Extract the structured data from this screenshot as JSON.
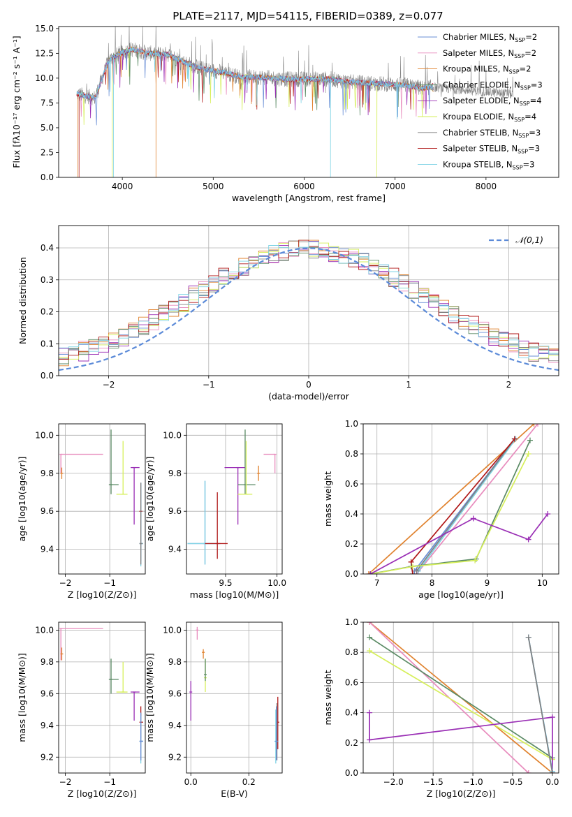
{
  "figure_title": "PLATE=2117, MJD=54115, FIBERID=0389, z=0.077",
  "colors": {
    "Chabrier MILES": "#6a8fd6",
    "Salpeter MILES": "#e88bbd",
    "Kroupa MILES": "#e0822e",
    "Chabrier ELODIE": "#5a8a64",
    "Salpeter ELODIE": "#9a2fb5",
    "Kroupa ELODIE": "#d6ef5a",
    "Chabrier STELIB": "#808080",
    "Salpeter STELIB": "#b01818",
    "Kroupa STELIB": "#7fd3e4"
  },
  "chart_data": [
    {
      "type": "line",
      "id": "spectrum",
      "title": "PLATE=2117, MJD=54115, FIBERID=0389, z=0.077",
      "xlabel": "wavelength [Angstrom, rest frame]",
      "ylabel": "Flux [fλ10⁻¹⁷ erg cm⁻² s⁻¹ A⁻¹]",
      "xlim": [
        3300,
        8800
      ],
      "ylim": [
        0,
        15.2
      ],
      "xticks": [
        4000,
        5000,
        6000,
        7000,
        8000
      ],
      "yticks": [
        0.0,
        2.5,
        5.0,
        7.5,
        10.0,
        12.5,
        15.0
      ],
      "grid": false,
      "legend_position": "upper-right",
      "legend": [
        "Chabrier MILES, N_SSP=2",
        "Salpeter MILES, N_SSP=2",
        "Kroupa MILES, N_SSP=2",
        "Chabrier ELODIE, N_SSP=3",
        "Salpeter ELODIE, N_SSP=4",
        "Kroupa ELODIE, N_SSP=4",
        "Chabrier STELIB, N_SSP=3",
        "Salpeter STELIB, N_SSP=3",
        "Kroupa STELIB, N_SSP=3"
      ],
      "legend_html": [
        "Chabrier MILES, N<tspan font-size='8' dy='3'>SSP</tspan><tspan dy='-3'>=2</tspan>",
        "Salpeter MILES, N<tspan font-size='8' dy='3'>SSP</tspan><tspan dy='-3'>=2</tspan>",
        "Kroupa MILES, N<tspan font-size='8' dy='3'>SSP</tspan><tspan dy='-3'>=2</tspan>",
        "Chabrier ELODIE, N<tspan font-size='8' dy='3'>SSP</tspan><tspan dy='-3'>=3</tspan>",
        "Salpeter ELODIE, N<tspan font-size='8' dy='3'>SSP</tspan><tspan dy='-3'>=4</tspan>",
        "Kroupa ELODIE, N<tspan font-size='8' dy='3'>SSP</tspan><tspan dy='-3'>=4</tspan>",
        "Chabrier STELIB, N<tspan font-size='8' dy='3'>SSP</tspan><tspan dy='-3'>=3</tspan>",
        "Salpeter STELIB, N<tspan font-size='8' dy='3'>SSP</tspan><tspan dy='-3'>=3</tspan>",
        "Kroupa STELIB, N<tspan font-size='8' dy='3'>SSP</tspan><tspan dy='-3'>=3</tspan>"
      ],
      "continuum": [
        [
          3500,
          8.4
        ],
        [
          3700,
          8.0
        ],
        [
          3850,
          11.8
        ],
        [
          3950,
          12.4
        ],
        [
          4100,
          12.9
        ],
        [
          4300,
          12.5
        ],
        [
          4500,
          12.4
        ],
        [
          4700,
          11.5
        ],
        [
          4900,
          10.9
        ],
        [
          5100,
          10.6
        ],
        [
          5300,
          10.1
        ],
        [
          5500,
          10.1
        ],
        [
          5800,
          9.9
        ],
        [
          6100,
          9.9
        ],
        [
          6300,
          9.9
        ],
        [
          6500,
          9.6
        ],
        [
          6700,
          9.5
        ],
        [
          6900,
          9.4
        ],
        [
          7100,
          9.3
        ],
        [
          7300,
          9.0
        ],
        [
          7400,
          9.1
        ]
      ],
      "observed_extends_to": 8300,
      "drops_to_zero": [
        {
          "series": "Kroupa MILES",
          "x": [
            3510,
            4365,
            7420
          ]
        },
        {
          "series": "Kroupa STELIB",
          "x": [
            3900,
            6290
          ]
        },
        {
          "series": "Kroupa ELODIE",
          "x": [
            3890,
            6800
          ]
        },
        {
          "series": "Salpeter STELIB",
          "x": [
            3520,
            7420
          ]
        }
      ]
    },
    {
      "type": "histogram",
      "id": "residuals",
      "xlabel": "(data-model)/error",
      "ylabel": "Normed distribution",
      "xlim": [
        -2.5,
        2.5
      ],
      "ylim": [
        0,
        0.47
      ],
      "xticks": [
        -2,
        -1,
        0,
        1,
        2
      ],
      "yticks": [
        0.0,
        0.1,
        0.2,
        0.3,
        0.4
      ],
      "grid": true,
      "legend_position": "upper-right",
      "reference": {
        "name": "𝒩(0,1)",
        "mean": 0,
        "sigma": 1
      },
      "bin_width": 0.1
    },
    {
      "type": "scatter",
      "id": "age_vs_Z",
      "xlabel": "Z [log10(Z/Z⊙)]",
      "ylabel": "age [log10(age/yr)]",
      "xlim": [
        -2.15,
        -0.2
      ],
      "ylim": [
        9.27,
        10.06
      ],
      "xticks": [
        -2,
        -1
      ],
      "yticks": [
        9.4,
        9.6,
        9.8,
        10.0
      ],
      "grid": true,
      "points": [
        {
          "series": "Salpeter MILES",
          "x": -2.1,
          "y": 9.9,
          "xerr": [
            0,
            0.95
          ],
          "yerr": [
            0.1,
            0
          ]
        },
        {
          "series": "Kroupa MILES",
          "x": -2.08,
          "y": 9.8,
          "xerr": [
            0,
            0
          ],
          "yerr": [
            0.03,
            0.03
          ]
        },
        {
          "series": "Chabrier ELODIE",
          "x": -0.97,
          "y": 9.74,
          "xerr": [
            0.05,
            0.17
          ],
          "yerr": [
            0.05,
            0.29
          ]
        },
        {
          "series": "Kroupa ELODIE",
          "x": -0.7,
          "y": 9.69,
          "xerr": [
            0.15,
            0.1
          ],
          "yerr": [
            0,
            0.28
          ]
        },
        {
          "series": "Salpeter ELODIE",
          "x": -0.45,
          "y": 9.83,
          "xerr": [
            0.08,
            0.12
          ],
          "yerr": [
            0.3,
            0
          ]
        },
        {
          "series": "Salpeter STELIB",
          "x": -0.3,
          "y": 9.6,
          "xerr": [
            0,
            0
          ],
          "yerr": [
            0.26,
            0.15
          ]
        },
        {
          "series": "Chabrier MILES",
          "x": -0.3,
          "y": 9.43,
          "xerr": [
            0.02,
            0.05
          ],
          "yerr": [
            0.11,
            0.32
          ]
        },
        {
          "series": "Kroupa STELIB",
          "x": -0.3,
          "y": 9.43,
          "xerr": [
            0.02,
            0.05
          ],
          "yerr": [
            0.12,
            0.32
          ]
        },
        {
          "series": "Chabrier STELIB",
          "x": -0.3,
          "y": 9.43,
          "xerr": [
            0.02,
            0.04
          ],
          "yerr": [
            0.11,
            0.32
          ]
        }
      ]
    },
    {
      "type": "scatter",
      "id": "age_vs_mass",
      "xlabel": "mass [log10(M/M⊙)]",
      "ylabel": "age [log10(age/yr)]",
      "xlim": [
        9.12,
        10.05
      ],
      "ylim": [
        9.27,
        10.06
      ],
      "xticks": [
        9.5,
        10.0
      ],
      "yticks": [
        9.4,
        9.6,
        9.8,
        10.0
      ],
      "grid": true,
      "points": [
        {
          "series": "Chabrier MILES",
          "x": 9.3,
          "y": 9.43,
          "xerr": [
            0.17,
            0.15
          ],
          "yerr": [
            0.11,
            0.33
          ]
        },
        {
          "series": "Kroupa STELIB",
          "x": 9.3,
          "y": 9.43,
          "xerr": [
            0.17,
            0.12
          ],
          "yerr": [
            0.11,
            0.33
          ]
        },
        {
          "series": "Salpeter STELIB",
          "x": 9.42,
          "y": 9.43,
          "xerr": [
            0.12,
            0.1
          ],
          "yerr": [
            0.08,
            0.27
          ]
        },
        {
          "series": "Salpeter ELODIE",
          "x": 9.62,
          "y": 9.83,
          "xerr": [
            0.13,
            0.07
          ],
          "yerr": [
            0.3,
            0
          ]
        },
        {
          "series": "Chabrier ELODIE",
          "x": 9.69,
          "y": 9.74,
          "xerr": [
            0.07,
            0.1
          ],
          "yerr": [
            0.05,
            0.29
          ]
        },
        {
          "series": "Kroupa ELODIE",
          "x": 9.7,
          "y": 9.69,
          "xerr": [
            0.08,
            0.06
          ],
          "yerr": [
            0,
            0.28
          ]
        },
        {
          "series": "Kroupa MILES",
          "x": 9.82,
          "y": 9.8,
          "xerr": [
            0,
            0
          ],
          "yerr": [
            0.04,
            0.04
          ]
        },
        {
          "series": "Salpeter MILES",
          "x": 9.98,
          "y": 9.9,
          "xerr": [
            0.11,
            0
          ],
          "yerr": [
            0.1,
            0
          ]
        }
      ]
    },
    {
      "type": "line",
      "id": "mass_weight_vs_age",
      "xlabel": "age [log10(age/yr)]",
      "ylabel": "mass weight",
      "xlim": [
        6.75,
        10.3
      ],
      "ylim": [
        0,
        1
      ],
      "xticks": [
        7,
        8,
        9,
        10
      ],
      "yticks": [
        0.0,
        0.2,
        0.4,
        0.6,
        0.8,
        1.0
      ],
      "grid": true,
      "series": [
        {
          "name": "Kroupa MILES",
          "points": [
            [
              6.85,
              0.0
            ],
            [
              9.85,
              1.0
            ]
          ]
        },
        {
          "name": "Salpeter MILES",
          "points": [
            [
              7.72,
              0.0
            ],
            [
              9.92,
              1.0
            ]
          ]
        },
        {
          "name": "Chabrier MILES",
          "points": [
            [
              7.68,
              0.02
            ],
            [
              9.5,
              0.9
            ]
          ]
        },
        {
          "name": "Kroupa STELIB",
          "points": [
            [
              7.75,
              0.02
            ],
            [
              9.52,
              0.9
            ]
          ]
        },
        {
          "name": "Chabrier STELIB",
          "points": [
            [
              7.72,
              0.02
            ],
            [
              9.5,
              0.9
            ]
          ]
        },
        {
          "name": "Salpeter STELIB",
          "points": [
            [
              7.65,
              0.0
            ],
            [
              7.62,
              0.08
            ],
            [
              9.5,
              0.9
            ]
          ]
        },
        {
          "name": "Chabrier ELODIE",
          "points": [
            [
              6.88,
              0.0
            ],
            [
              7.62,
              0.05
            ],
            [
              8.8,
              0.1
            ],
            [
              9.78,
              0.89
            ]
          ]
        },
        {
          "name": "Kroupa ELODIE",
          "points": [
            [
              6.9,
              0.0
            ],
            [
              7.65,
              0.05
            ],
            [
              8.78,
              0.09
            ],
            [
              9.75,
              0.8
            ]
          ]
        },
        {
          "name": "Salpeter ELODIE",
          "points": [
            [
              6.88,
              0.0
            ],
            [
              8.75,
              0.37
            ],
            [
              9.75,
              0.23
            ],
            [
              10.1,
              0.4
            ]
          ]
        }
      ]
    },
    {
      "type": "scatter",
      "id": "mass_vs_Z",
      "xlabel": "Z [log10(Z/Z⊙)]",
      "ylabel": "mass [log10(M/M⊙)]",
      "xlim": [
        -2.15,
        -0.2
      ],
      "ylim": [
        9.1,
        10.05
      ],
      "xticks": [
        -2,
        -1
      ],
      "yticks": [
        9.2,
        9.4,
        9.6,
        9.8,
        10.0
      ],
      "grid": true,
      "points": [
        {
          "series": "Salpeter MILES",
          "x": -2.1,
          "y": 10.01,
          "xerr": [
            0,
            0.95
          ],
          "yerr": [
            0.2,
            0
          ]
        },
        {
          "series": "Kroupa MILES",
          "x": -2.08,
          "y": 9.85,
          "xerr": [
            0,
            0
          ],
          "yerr": [
            0.04,
            0.04
          ]
        },
        {
          "series": "Chabrier ELODIE",
          "x": -0.97,
          "y": 9.69,
          "xerr": [
            0.05,
            0.17
          ],
          "yerr": [
            0.09,
            0.13
          ]
        },
        {
          "series": "Kroupa ELODIE",
          "x": -0.7,
          "y": 9.61,
          "xerr": [
            0.15,
            0.1
          ],
          "yerr": [
            0,
            0.19
          ]
        },
        {
          "series": "Salpeter ELODIE",
          "x": -0.45,
          "y": 9.61,
          "xerr": [
            0.08,
            0.12
          ],
          "yerr": [
            0.18,
            0
          ]
        },
        {
          "series": "Salpeter STELIB",
          "x": -0.3,
          "y": 9.42,
          "xerr": [
            0.02,
            0.05
          ],
          "yerr": [
            0.1,
            0.1
          ]
        },
        {
          "series": "Chabrier STELIB",
          "x": -0.3,
          "y": 9.3,
          "xerr": [
            0.02,
            0.05
          ],
          "yerr": [
            0.12,
            0.18
          ]
        },
        {
          "series": "Kroupa STELIB",
          "x": -0.3,
          "y": 9.3,
          "xerr": [
            0.02,
            0.05
          ],
          "yerr": [
            0.14,
            0.16
          ]
        },
        {
          "series": "Chabrier MILES",
          "x": -0.3,
          "y": 9.3,
          "xerr": [
            0.02,
            0.05
          ],
          "yerr": [
            0.12,
            0.18
          ]
        }
      ]
    },
    {
      "type": "scatter",
      "id": "mass_vs_ebv",
      "xlabel": "E(B-V)",
      "ylabel": "mass [log10(M/M⊙)]",
      "xlim": [
        -0.015,
        0.315
      ],
      "ylim": [
        9.1,
        10.05
      ],
      "xticks": [
        0.0,
        0.2
      ],
      "yticks": [
        9.2,
        9.4,
        9.6,
        9.8,
        10.0
      ],
      "grid": true,
      "points": [
        {
          "series": "Salpeter ELODIE",
          "x": 0.0,
          "y": 9.61,
          "xerr": [
            0,
            0
          ],
          "yerr": [
            0.18,
            0.07
          ]
        },
        {
          "series": "Salpeter MILES",
          "x": 0.022,
          "y": 10.0,
          "xerr": [
            0,
            0
          ],
          "yerr": [
            0.06,
            0.02
          ]
        },
        {
          "series": "Kroupa MILES",
          "x": 0.043,
          "y": 9.86,
          "xerr": [
            0,
            0
          ],
          "yerr": [
            0.04,
            0.02
          ]
        },
        {
          "series": "Kroupa ELODIE",
          "x": 0.05,
          "y": 9.7,
          "xerr": [
            0,
            0
          ],
          "yerr": [
            0.09,
            0.12
          ]
        },
        {
          "series": "Chabrier ELODIE",
          "x": 0.05,
          "y": 9.72,
          "xerr": [
            0,
            0
          ],
          "yerr": [
            0.04,
            0.1
          ]
        },
        {
          "series": "Salpeter STELIB",
          "x": 0.3,
          "y": 9.42,
          "xerr": [
            0,
            0
          ],
          "yerr": [
            0.17,
            0.16
          ]
        },
        {
          "series": "Chabrier STELIB",
          "x": 0.297,
          "y": 9.3,
          "xerr": [
            0,
            0
          ],
          "yerr": [
            0.12,
            0.24
          ]
        },
        {
          "series": "Kroupa STELIB",
          "x": 0.293,
          "y": 9.3,
          "xerr": [
            0,
            0
          ],
          "yerr": [
            0.14,
            0.2
          ]
        },
        {
          "series": "Chabrier MILES",
          "x": 0.295,
          "y": 9.3,
          "xerr": [
            0,
            0
          ],
          "yerr": [
            0.12,
            0.22
          ]
        }
      ]
    },
    {
      "type": "line",
      "id": "mass_weight_vs_Z",
      "xlabel": "Z [log10(Z/Z⊙)]",
      "ylabel": "mass weight",
      "xlim": [
        -2.38,
        0.08
      ],
      "ylim": [
        0,
        1
      ],
      "xticks": [
        -2.0,
        -1.5,
        -1.0,
        -0.5,
        0.0
      ],
      "yticks": [
        0.0,
        0.2,
        0.4,
        0.6,
        0.8,
        1.0
      ],
      "grid": true,
      "series": [
        {
          "name": "Kroupa MILES",
          "points": [
            [
              -2.3,
              1.0
            ],
            [
              0.0,
              0.0
            ]
          ]
        },
        {
          "name": "Salpeter MILES",
          "points": [
            [
              -2.3,
              1.0
            ],
            [
              -0.3,
              0.0
            ]
          ]
        },
        {
          "name": "Chabrier ELODIE",
          "points": [
            [
              -2.3,
              0.9
            ],
            [
              0.0,
              0.1
            ]
          ]
        },
        {
          "name": "Kroupa ELODIE",
          "points": [
            [
              -2.3,
              0.81
            ],
            [
              0.0,
              0.09
            ]
          ]
        },
        {
          "name": "Salpeter ELODIE",
          "points": [
            [
              -2.3,
              0.4
            ],
            [
              -2.3,
              0.22
            ],
            [
              0.0,
              0.37
            ],
            [
              0.0,
              0.0
            ]
          ]
        },
        {
          "name": "Chabrier MILES",
          "points": [
            [
              -0.3,
              0.9
            ],
            [
              0.0,
              0.01
            ]
          ]
        },
        {
          "name": "Kroupa STELIB",
          "points": [
            [
              -0.3,
              0.9
            ],
            [
              0.0,
              0.01
            ]
          ]
        },
        {
          "name": "Chabrier STELIB",
          "points": [
            [
              -0.3,
              0.9
            ],
            [
              0.0,
              0.0
            ]
          ]
        }
      ]
    }
  ]
}
